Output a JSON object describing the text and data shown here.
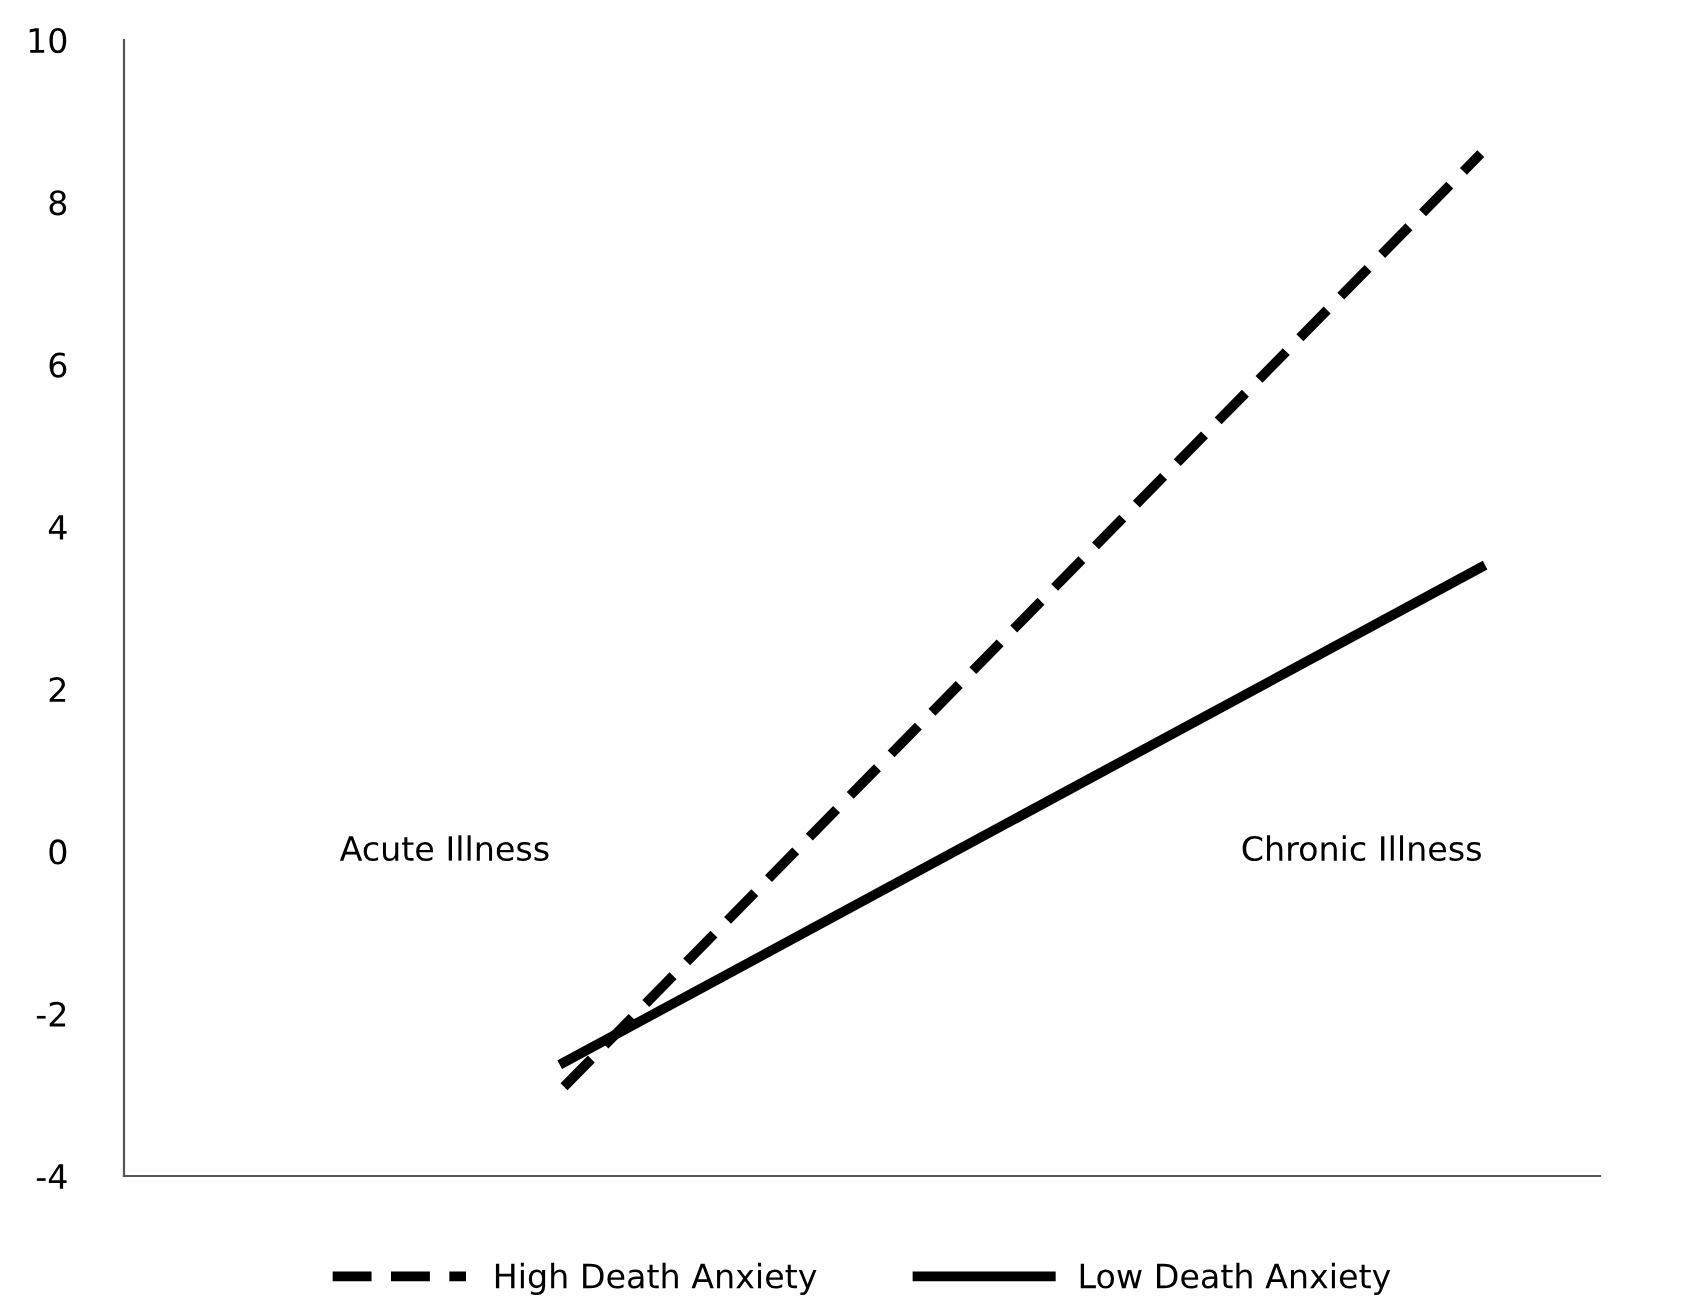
{
  "chart_data": {
    "type": "line",
    "categories": [
      "Acute Illness",
      "Chronic Illness"
    ],
    "series": [
      {
        "name": "High Death Anxiety",
        "color": "#000000",
        "line_style": "dashed",
        "values": [
          -2.9,
          8.6
        ]
      },
      {
        "name": "Low Death Anxiety",
        "color": "#000000",
        "line_style": "solid",
        "values": [
          -2.6,
          3.5
        ]
      }
    ],
    "ylim": [
      -4,
      10
    ],
    "yticks": [
      -4,
      -2,
      0,
      2,
      4,
      6,
      8,
      10
    ],
    "grid": false,
    "legend": "bottom",
    "marker": "none"
  }
}
